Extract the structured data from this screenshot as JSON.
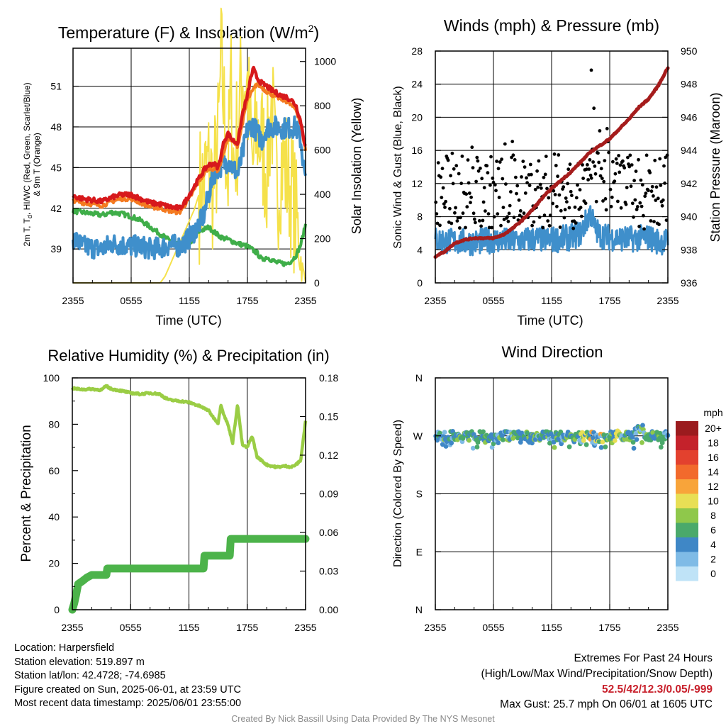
{
  "colors": {
    "t2m": "#d7191c",
    "t9m": "#f47a20",
    "td": "#3f8fcb",
    "hi_wc": "#3fae49",
    "solar": "#f5e14a",
    "wind_speed": "#3f8fcb",
    "gust": "#000000",
    "pressure": "#a51c1c",
    "rh": "#9acd45",
    "precip": "#4cb34a"
  },
  "panels": {
    "temperature": {
      "title": "Temperature (F) & Insolation (W/m",
      "title_sup": "2",
      "title_end": ")",
      "ylabel_left": [
        "2m T, T",
        "d",
        ", HI/WC (Red, Green, Scarlet/Blue)",
        "& 9m T (Orange)"
      ],
      "ylabel_right": "Solar Insolation (Yellow)",
      "xlabel": "Time (UTC)"
    },
    "wind": {
      "title": "Winds (mph) & Pressure (mb)",
      "ylabel_left": "Sonic Wind & Gust (Blue, Black)",
      "ylabel_right": "Station Pressure (Maroon)",
      "xlabel": "Time (UTC)"
    },
    "humidity": {
      "title": "Relative Humidity (%) & Precipitation (in)",
      "ylabel_left": "Percent & Precipitation"
    },
    "direction": {
      "title": "Wind Direction",
      "ylabel_left": "Direction (Colored By Speed)",
      "legend_title": "mph",
      "legend_labels": [
        "20+",
        "18",
        "16",
        "14",
        "12",
        "10",
        "8",
        "6",
        "4",
        "2",
        "0"
      ],
      "legend_colors": [
        "#9b1b1e",
        "#c4222b",
        "#e3412e",
        "#f26a2c",
        "#f8a43a",
        "#e8df55",
        "#8fc84b",
        "#4aa96b",
        "#3f87c6",
        "#7fbbe6",
        "#bfe3f7"
      ]
    }
  },
  "x_ticks": [
    "2355",
    "0555",
    "1155",
    "1755",
    "2355"
  ],
  "chart_data": [
    {
      "type": "line",
      "title": "Temperature (F) & Insolation (W/m2)",
      "xlabel": "Time (UTC)",
      "x_hours": [
        0,
        24
      ],
      "ylim_left": [
        36.5,
        53.8
      ],
      "yticks_left": [
        39,
        42,
        45,
        48,
        51
      ],
      "ylim_right": [
        0,
        1060
      ],
      "yticks_right": [
        0,
        200,
        400,
        600,
        800,
        1000
      ],
      "series": [
        {
          "name": "2m T",
          "color": "#d7191c",
          "axis": "left",
          "x": [
            0,
            1,
            2,
            3,
            4,
            5,
            6,
            7,
            8,
            9,
            9.5,
            10,
            11,
            11.5,
            12,
            12.5,
            13,
            13.5,
            14,
            14.5,
            15,
            15.3,
            15.6,
            16,
            16.5,
            17,
            17.5,
            18,
            18.3,
            18.6,
            19,
            19.5,
            20,
            20.5,
            21,
            21.5,
            22,
            22.5,
            23,
            23.5,
            24
          ],
          "y": [
            42.9,
            42.7,
            42.6,
            42.5,
            42.8,
            43.0,
            43.0,
            42.7,
            42.4,
            42.3,
            42.2,
            42.1,
            42.0,
            42.4,
            43.0,
            43.6,
            44.2,
            44.8,
            45.2,
            45.3,
            45.0,
            46.0,
            47.0,
            47.5,
            47.0,
            46.8,
            49.0,
            50.3,
            51.5,
            52.3,
            51.6,
            51.2,
            51.0,
            50.7,
            50.5,
            50.3,
            50.2,
            50.0,
            49.6,
            48.4,
            46.5
          ]
        },
        {
          "name": "9m T",
          "color": "#f47a20",
          "axis": "left",
          "x": [
            0,
            1,
            2,
            3,
            4,
            5,
            6,
            7,
            8,
            9,
            10,
            11,
            12,
            13,
            14,
            15,
            16,
            17,
            18,
            19,
            20,
            21,
            22,
            23,
            23.5,
            24
          ],
          "y": [
            42.6,
            42.4,
            42.3,
            42.2,
            42.5,
            42.7,
            42.7,
            42.4,
            42.1,
            42.0,
            41.8,
            41.7,
            42.7,
            44.0,
            45.0,
            44.8,
            47.2,
            46.6,
            50.0,
            51.2,
            50.6,
            50.2,
            49.9,
            49.3,
            48.2,
            46.3
          ]
        },
        {
          "name": "HI/WC",
          "color": "#3fae49",
          "axis": "left",
          "x": [
            0,
            1,
            2,
            3,
            4,
            5,
            6,
            7,
            8,
            9,
            10,
            11,
            12,
            13,
            14,
            15,
            15.5,
            16,
            17,
            18,
            19,
            19.5,
            20,
            21,
            22,
            22.5,
            23,
            23.5,
            24
          ],
          "y": [
            41.8,
            41.7,
            41.6,
            41.5,
            41.7,
            41.6,
            41.4,
            41.1,
            40.6,
            40.1,
            39.6,
            39.3,
            39.4,
            40.3,
            40.6,
            40.0,
            39.8,
            39.7,
            39.4,
            39.2,
            38.7,
            38.2,
            38.4,
            38.0,
            37.9,
            38.1,
            38.5,
            39.3,
            40.8
          ]
        },
        {
          "name": "Td",
          "color": "#3f8fcb",
          "axis": "left",
          "x": [
            0,
            1,
            2,
            3,
            4,
            5,
            6,
            7,
            8,
            9,
            10,
            11,
            12,
            13,
            13.5,
            14,
            14.5,
            15,
            15.5,
            16,
            16.5,
            17,
            17.5,
            18,
            18.5,
            19,
            19.5,
            20,
            21,
            22,
            23,
            23.5,
            24
          ],
          "y": [
            39.8,
            39.2,
            39.1,
            39.0,
            39.4,
            39.3,
            39.2,
            39.2,
            39.0,
            39.1,
            39.3,
            39.2,
            39.8,
            40.8,
            41.5,
            43.0,
            44.5,
            45.0,
            45.2,
            45.5,
            45.0,
            44.5,
            46.0,
            47.8,
            48.2,
            47.6,
            47.0,
            48.0,
            48.0,
            47.9,
            48.0,
            47.0,
            43.9
          ]
        },
        {
          "name": "Solar Insolation",
          "color": "#f5e14a",
          "axis": "right",
          "x": [
            0,
            5,
            9,
            9.5,
            10,
            10.5,
            11,
            11.5,
            12,
            12.5,
            13,
            13.5,
            14,
            14.5,
            15,
            15.3,
            15.6,
            16,
            16.3,
            16.6,
            17,
            17.5,
            18,
            18.5,
            19,
            19.5,
            20,
            20.5,
            21,
            21.5,
            22,
            22.5,
            23,
            23.3,
            23.6,
            24
          ],
          "y": [
            0,
            0,
            0,
            30,
            80,
            130,
            180,
            230,
            280,
            330,
            400,
            450,
            520,
            420,
            650,
            1000,
            760,
            480,
            900,
            520,
            700,
            950,
            880,
            500,
            700,
            620,
            520,
            820,
            400,
            560,
            500,
            430,
            300,
            200,
            70,
            10
          ]
        }
      ]
    },
    {
      "type": "scatter",
      "title": "Winds (mph) & Pressure (mb)",
      "xlabel": "Time (UTC)",
      "x_hours": [
        0,
        24
      ],
      "ylim_left": [
        0,
        28
      ],
      "yticks_left": [
        0,
        4,
        8,
        12,
        16,
        20,
        24,
        28
      ],
      "ylim_right": [
        936,
        950
      ],
      "yticks_right": [
        936,
        938,
        940,
        942,
        944,
        946,
        948,
        950
      ],
      "series": [
        {
          "name": "Sonic Wind",
          "color": "#3f8fcb",
          "axis": "left",
          "x": [
            0,
            2,
            4,
            6,
            8,
            10,
            12,
            14,
            15,
            16,
            16.5,
            17,
            18,
            20,
            22,
            23,
            24
          ],
          "y": [
            5.2,
            5.0,
            4.9,
            5.2,
            5.0,
            5.3,
            5.2,
            5.5,
            6.0,
            8.5,
            6.5,
            5.8,
            5.5,
            5.3,
            5.5,
            5.0,
            5.0
          ]
        },
        {
          "name": "Gust",
          "color": "#000000",
          "axis": "left",
          "mean": 11,
          "max": 25.7,
          "max_time": "1605"
        },
        {
          "name": "Station Pressure",
          "color": "#a51c1c",
          "axis": "right",
          "x": [
            0,
            1,
            2,
            3,
            4,
            5,
            6,
            7,
            8,
            9,
            10,
            11,
            12,
            13,
            14,
            15,
            16,
            17,
            18,
            19,
            20,
            21,
            22,
            23,
            24
          ],
          "y": [
            937.6,
            937.9,
            938.4,
            938.6,
            938.7,
            938.7,
            938.7,
            938.9,
            939.3,
            939.8,
            940.4,
            941.1,
            941.7,
            942.2,
            942.7,
            943.3,
            943.9,
            944.3,
            944.7,
            945.3,
            945.9,
            946.6,
            947.1,
            947.9,
            949.0
          ]
        }
      ]
    },
    {
      "type": "line",
      "title": "Relative Humidity (%) & Precipitation (in)",
      "x_hours": [
        0,
        24
      ],
      "ylim_left": [
        0,
        100
      ],
      "yticks_left": [
        0,
        20,
        40,
        60,
        80,
        100
      ],
      "ylim_right": [
        0,
        0.18
      ],
      "yticks_right": [
        "0.00",
        "0.03",
        "0.06",
        "0.09",
        "0.12",
        "0.15",
        "0.18"
      ],
      "series": [
        {
          "name": "Relative Humidity",
          "color": "#9acd45",
          "axis": "left",
          "x": [
            0,
            1,
            2,
            3,
            3.5,
            4,
            5,
            6,
            7,
            8,
            9,
            9.5,
            10,
            11,
            12,
            13,
            14,
            14.5,
            15,
            15.3,
            15.6,
            16,
            16.5,
            17,
            17.5,
            18,
            18.5,
            19,
            20,
            21,
            22,
            22.5,
            23,
            23.5,
            24
          ],
          "y": [
            95.5,
            95.0,
            95.2,
            94.8,
            96.5,
            95.2,
            94.5,
            93.5,
            93.0,
            93.5,
            93.0,
            91.5,
            90.5,
            90.0,
            89.5,
            88.0,
            86.0,
            83.0,
            80.5,
            88.5,
            84.0,
            80.0,
            72.0,
            88.5,
            71.0,
            70.0,
            75.0,
            66.0,
            62.5,
            61.5,
            62.0,
            61.5,
            62.5,
            64.5,
            81.5
          ]
        },
        {
          "name": "Precipitation",
          "color": "#4cb34a",
          "axis": "right",
          "x": [
            0,
            0.2,
            0.4,
            0.6,
            1.0,
            1.5,
            2.0,
            3.5,
            3.6,
            12.0,
            13.5,
            13.6,
            14.5,
            16.2,
            16.3,
            24
          ],
          "y": [
            0.0,
            0.005,
            0.012,
            0.02,
            0.022,
            0.025,
            0.027,
            0.027,
            0.032,
            0.032,
            0.032,
            0.042,
            0.042,
            0.042,
            0.055,
            0.055
          ]
        }
      ]
    },
    {
      "type": "scatter",
      "title": "Wind Direction",
      "ylabel": "Direction (Colored By Speed)",
      "x_hours": [
        0,
        24
      ],
      "ylim": [
        0,
        360
      ],
      "yticks": [
        "N",
        "E",
        "S",
        "W",
        "N"
      ],
      "series": [
        {
          "name": "Direction",
          "mean_deg": 270,
          "spread_deg": 10
        }
      ]
    }
  ],
  "info": {
    "location": "Location: Harpersfield",
    "elevation": "Station elevation: 519.897 m",
    "latlon": "Station lat/lon: 42.4728; -74.6985",
    "created": "Figure created on Sun, 2025-06-01, at 23:59 UTC",
    "recent": "Most recent data timestamp: 2025/06/01 23:55:00"
  },
  "extremes": {
    "title": "Extremes For Past 24 Hours",
    "subtitle": "(High/Low/Max Wind/Precipitation/Snow Depth)",
    "values": "52.5/42/12.3/0.05/-999",
    "max_gust": "Max Gust: 25.7 mph On 06/01 at 1605 UTC"
  },
  "credit": "Created By Nick Bassill Using Data Provided By The NYS Mesonet"
}
